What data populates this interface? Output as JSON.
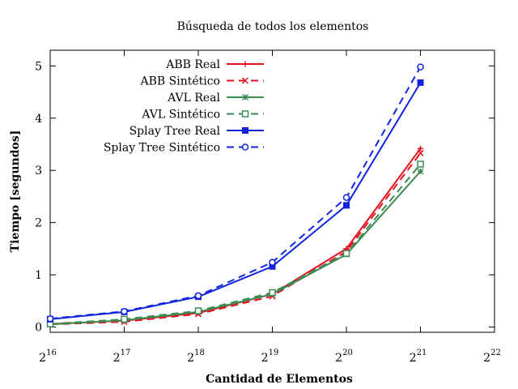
{
  "chart_data": {
    "type": "line",
    "title": "Búsqueda de todos los elementos",
    "xlabel": "Cantidad de Elementos",
    "ylabel": "Tiempo [segundos]",
    "x_scale": "log2",
    "x_tick_base": "2",
    "x_tick_exponents": [
      "16",
      "17",
      "18",
      "19",
      "20",
      "21",
      "22"
    ],
    "xlim": [
      65536,
      4194304
    ],
    "y_ticks": [
      "0",
      "1",
      "2",
      "3",
      "4",
      "5"
    ],
    "ylim": [
      -0.1,
      5.3
    ],
    "grid": false,
    "legend_position": "top-left",
    "x": [
      65536,
      131072,
      262144,
      524288,
      1048576,
      2097152
    ],
    "series": [
      {
        "name": "ABB Real",
        "color": "#e8101e",
        "dash": "solid",
        "marker": "plus",
        "values": [
          0.06,
          0.12,
          0.27,
          0.63,
          1.5,
          3.42
        ]
      },
      {
        "name": "ABB Sintético",
        "color": "#e8101e",
        "dash": "dashed",
        "marker": "cross",
        "values": [
          0.05,
          0.1,
          0.25,
          0.59,
          1.45,
          3.33
        ]
      },
      {
        "name": "AVL Real",
        "color": "#3a8a52",
        "dash": "solid",
        "marker": "star",
        "values": [
          0.05,
          0.13,
          0.29,
          0.63,
          1.39,
          2.98
        ]
      },
      {
        "name": "AVL Sintético",
        "color": "#3a8a52",
        "dash": "dashed",
        "marker": "open-square",
        "values": [
          0.06,
          0.15,
          0.31,
          0.66,
          1.41,
          3.12
        ]
      },
      {
        "name": "Splay Tree Real",
        "color": "#1024e0",
        "dash": "solid",
        "marker": "filled-square",
        "values": [
          0.15,
          0.29,
          0.58,
          1.16,
          2.33,
          4.68
        ]
      },
      {
        "name": "Splay Tree Sintético",
        "color": "#1024e0",
        "dash": "dashed",
        "marker": "open-circle",
        "values": [
          0.16,
          0.3,
          0.6,
          1.24,
          2.48,
          4.98
        ]
      }
    ]
  }
}
